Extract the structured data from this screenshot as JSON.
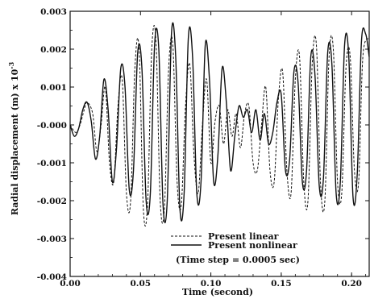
{
  "chart_data": {
    "type": "line",
    "xlabel": "Time (second)",
    "ylabel": "Radial displacement (m) x 10",
    "ylabel_superscript": "-3",
    "xlim": [
      0.0,
      0.2125
    ],
    "ylim": [
      -0.004,
      0.003
    ],
    "x_ticks": [
      "0.00",
      "0.05",
      "0.10",
      "0.15",
      "0.20"
    ],
    "y_ticks": [
      "0.003",
      "0.002",
      "0.001",
      "-0.000",
      "-0.001",
      "-0.002",
      "-0.003",
      "-0.004"
    ],
    "grid": false,
    "legend_position": "bottom-right",
    "annotation": "(Time step = 0.0005 sec)",
    "series": [
      {
        "name": "Present linear",
        "style": "dashed",
        "color": "#111111",
        "x": [
          0.0,
          0.004,
          0.007,
          0.01,
          0.012,
          0.016,
          0.019,
          0.022,
          0.025,
          0.028,
          0.031,
          0.034,
          0.037,
          0.04,
          0.043,
          0.046,
          0.049,
          0.052,
          0.055,
          0.058,
          0.061,
          0.064,
          0.067,
          0.07,
          0.073,
          0.076,
          0.079,
          0.082,
          0.085,
          0.088,
          0.091,
          0.094,
          0.097,
          0.1,
          0.103,
          0.106,
          0.109,
          0.112,
          0.115,
          0.118,
          0.121,
          0.124,
          0.127,
          0.13,
          0.133,
          0.136,
          0.139,
          0.142,
          0.145,
          0.148,
          0.151,
          0.154,
          0.157,
          0.16,
          0.163,
          0.166,
          0.169,
          0.172,
          0.175,
          0.178,
          0.181,
          0.184,
          0.187,
          0.19,
          0.193,
          0.196,
          0.199,
          0.202,
          0.205,
          0.208,
          0.2125
        ],
        "y": [
          0.0,
          -0.0002,
          0.0,
          0.0004,
          0.0006,
          0.0003,
          -0.0007,
          0.0,
          0.001,
          -0.001,
          -0.0015,
          0.0005,
          0.0012,
          -0.0018,
          -0.002,
          0.0015,
          0.002,
          -0.0022,
          -0.0021,
          0.002,
          0.0022,
          -0.002,
          -0.0022,
          0.0015,
          0.0021,
          -0.0015,
          -0.0021,
          0.0005,
          0.0016,
          -0.0008,
          -0.0018,
          0.0,
          0.0012,
          -0.001,
          0.0001,
          0.0005,
          -0.0005,
          0.0004,
          -0.0003,
          0.0003,
          -0.0006,
          0.0003,
          0.0005,
          -0.001,
          -0.0012,
          0.0,
          0.001,
          -0.0012,
          -0.0015,
          0.0007,
          0.0014,
          -0.0012,
          -0.0018,
          0.0012,
          0.0018,
          -0.0015,
          -0.002,
          0.0016,
          0.0021,
          -0.0016,
          -0.002,
          0.0018,
          0.002,
          -0.0015,
          -0.0018,
          0.0015,
          0.0018,
          -0.0012,
          -0.0015,
          0.0018,
          0.0023
        ]
      },
      {
        "name": "Present nonlinear",
        "style": "solid",
        "color": "#111111",
        "x": [
          0.0,
          0.003,
          0.006,
          0.009,
          0.012,
          0.015,
          0.018,
          0.021,
          0.024,
          0.027,
          0.03,
          0.033,
          0.036,
          0.039,
          0.042,
          0.045,
          0.048,
          0.051,
          0.054,
          0.057,
          0.06,
          0.063,
          0.066,
          0.069,
          0.072,
          0.075,
          0.078,
          0.081,
          0.084,
          0.087,
          0.09,
          0.093,
          0.096,
          0.099,
          0.102,
          0.105,
          0.108,
          0.111,
          0.114,
          0.117,
          0.12,
          0.123,
          0.126,
          0.129,
          0.132,
          0.135,
          0.138,
          0.141,
          0.144,
          0.147,
          0.15,
          0.153,
          0.156,
          0.159,
          0.162,
          0.165,
          0.168,
          0.171,
          0.174,
          0.177,
          0.18,
          0.183,
          0.186,
          0.189,
          0.192,
          0.195,
          0.198,
          0.201,
          0.204,
          0.207,
          0.21,
          0.2125
        ],
        "y": [
          0.0,
          -0.0003,
          -0.0001,
          0.0004,
          0.0006,
          0.0001,
          -0.0009,
          -0.0003,
          0.0012,
          0.0004,
          -0.0015,
          -0.0006,
          0.0015,
          0.001,
          -0.0017,
          -0.0012,
          0.0019,
          0.0015,
          -0.002,
          -0.0018,
          0.0021,
          0.002,
          -0.0021,
          -0.002,
          0.0024,
          0.0018,
          -0.0022,
          -0.0018,
          0.0023,
          0.0018,
          -0.0018,
          -0.0015,
          0.0021,
          0.0012,
          -0.0015,
          -0.0008,
          0.0015,
          0.0006,
          -0.0012,
          -0.0003,
          0.0005,
          0.0002,
          0.0004,
          -0.0002,
          0.0004,
          -0.0004,
          0.0003,
          -0.0005,
          -0.0002,
          0.0006,
          0.0008,
          -0.0012,
          -0.0009,
          0.0014,
          0.0011,
          -0.0015,
          -0.0012,
          0.0018,
          0.0013,
          -0.0016,
          -0.0014,
          0.0019,
          0.0016,
          -0.0018,
          -0.0015,
          0.0021,
          0.0018,
          -0.0019,
          -0.0013,
          0.0022,
          0.0024,
          0.0018
        ]
      }
    ]
  }
}
